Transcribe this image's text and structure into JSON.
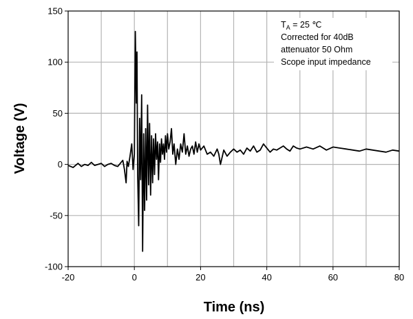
{
  "chart_data": {
    "type": "line",
    "xlabel": "Time  (ns)",
    "ylabel": "Voltage (V)",
    "xlim": [
      -20,
      80
    ],
    "ylim": [
      -100,
      150
    ],
    "xticks": [
      -20,
      0,
      20,
      40,
      60,
      80
    ],
    "yticks": [
      -100,
      -50,
      0,
      50,
      100,
      150
    ],
    "grid": "vertical every 10 ns, horizontal every 50 V",
    "annotation": {
      "line1_main": "T",
      "line1_sub": "A",
      "line1_rest": " = 25 ℃",
      "line2": "Corrected for 40dB",
      "line3": "attenuator 50 Ohm",
      "line4": "Scope input impedance"
    },
    "series": [
      {
        "x": [
          -20,
          -18.5,
          -17,
          -16,
          -15,
          -14,
          -13,
          -12,
          -11,
          -10,
          -9,
          -8,
          -7,
          -6,
          -5,
          -4,
          -3.5,
          -3,
          -2.5,
          -2.2,
          -1.8,
          -1.3,
          -0.8,
          -0.4,
          0,
          0.3,
          0.6,
          0.8,
          1.0,
          1.3,
          1.6,
          1.9,
          2.2,
          2.5,
          2.8,
          3.1,
          3.4,
          3.7,
          4.0,
          4.3,
          4.6,
          4.9,
          5.2,
          5.5,
          5.8,
          6.1,
          6.4,
          6.7,
          7.0,
          7.3,
          7.6,
          7.9,
          8.2,
          8.5,
          8.8,
          9.1,
          9.4,
          9.7,
          10.0,
          10.4,
          10.8,
          11.2,
          11.6,
          12.0,
          12.5,
          13.0,
          13.5,
          14.0,
          14.5,
          15.0,
          15.5,
          16.0,
          16.5,
          17.0,
          17.5,
          18.0,
          18.5,
          19.0,
          19.5,
          20.0,
          21.0,
          22.0,
          23.0,
          24.0,
          25.0,
          25.5,
          26.0,
          27.0,
          28.0,
          29.0,
          30.0,
          31.0,
          32.0,
          33.0,
          34.0,
          35.0,
          36.0,
          37.0,
          38.0,
          39.0,
          40.0,
          41.0,
          42.0,
          43.0,
          44.0,
          45.0,
          46.0,
          47.0,
          48.0,
          49.0,
          50.0,
          52.0,
          54.0,
          56.0,
          58.0,
          60.0,
          62.0,
          64.0,
          66.0,
          68.0,
          70.0,
          72.0,
          74.0,
          76.0,
          78.0,
          80.0
        ],
        "y": [
          -1,
          -3,
          1,
          -2,
          0,
          -1,
          2,
          -1,
          0,
          1,
          -2,
          0,
          1,
          -1,
          -2,
          2,
          4,
          -5,
          -18,
          3,
          -2,
          8,
          20,
          -5,
          10,
          130,
          60,
          110,
          -10,
          -60,
          45,
          -15,
          68,
          -85,
          30,
          -45,
          35,
          -35,
          58,
          -20,
          40,
          -30,
          28,
          -18,
          25,
          -10,
          30,
          5,
          22,
          -15,
          20,
          2,
          25,
          10,
          20,
          5,
          28,
          12,
          30,
          15,
          22,
          35,
          10,
          20,
          0,
          15,
          5,
          20,
          12,
          30,
          10,
          18,
          8,
          15,
          18,
          10,
          22,
          12,
          20,
          14,
          18,
          10,
          12,
          8,
          15,
          10,
          0,
          14,
          8,
          12,
          15,
          12,
          14,
          10,
          16,
          13,
          18,
          12,
          14,
          20,
          16,
          12,
          15,
          14,
          16,
          18,
          15,
          13,
          18,
          16,
          15,
          17,
          15,
          18,
          14,
          17,
          16,
          15,
          14,
          13,
          15,
          14,
          13,
          12,
          14,
          13
        ]
      }
    ]
  }
}
